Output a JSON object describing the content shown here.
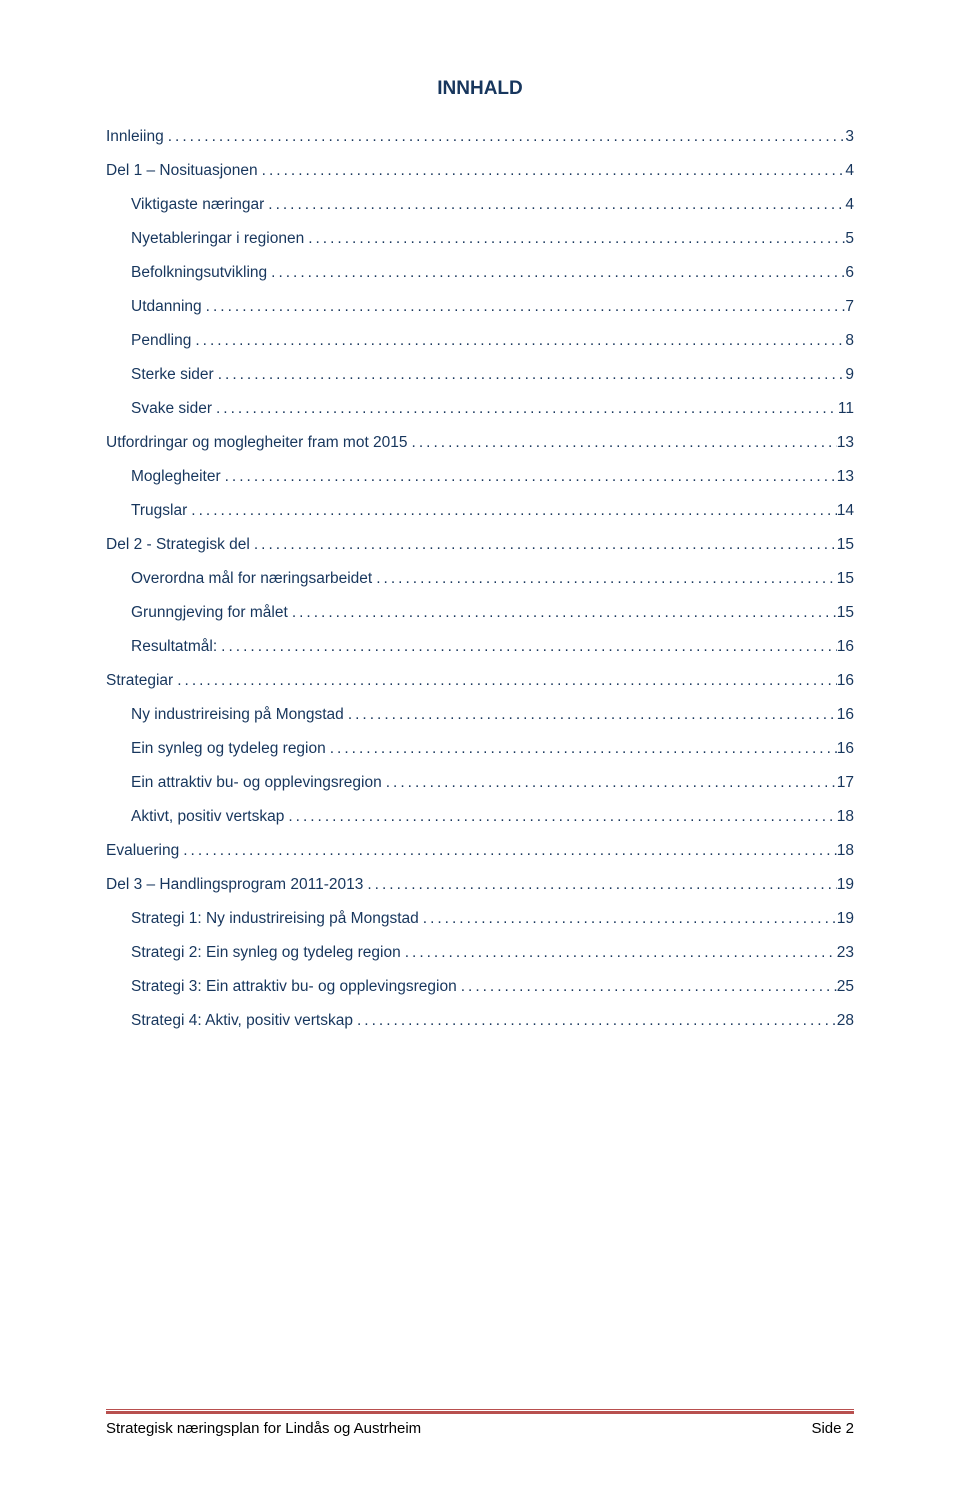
{
  "title": "INNHALD",
  "colors": {
    "heading": "#17365d",
    "toc_text": "#17365d",
    "divider": "#b8504f",
    "footer_text": "#000000",
    "background": "#ffffff"
  },
  "typography": {
    "title_fontsize": 19,
    "toc_fontsize": 15.5,
    "footer_fontsize": 15,
    "font_family": "Arial, Helvetica, sans-serif"
  },
  "toc": {
    "entries": [
      {
        "label": "Innleiing",
        "page": "3",
        "indent": 0
      },
      {
        "label": "Del 1 – Nosituasjonen",
        "page": "4",
        "indent": 0
      },
      {
        "label": "Viktigaste næringar",
        "page": "4",
        "indent": 1
      },
      {
        "label": "Nyetableringar i regionen",
        "page": "5",
        "indent": 1
      },
      {
        "label": "Befolkningsutvikling",
        "page": "6",
        "indent": 1
      },
      {
        "label": "Utdanning",
        "page": "7",
        "indent": 1
      },
      {
        "label": "Pendling",
        "page": "8",
        "indent": 1
      },
      {
        "label": "Sterke sider",
        "page": "9",
        "indent": 1
      },
      {
        "label": "Svake sider",
        "page": "11",
        "indent": 1
      },
      {
        "label": "Utfordringar og moglegheiter fram mot 2015",
        "page": "13",
        "indent": 0
      },
      {
        "label": "Moglegheiter",
        "page": "13",
        "indent": 1
      },
      {
        "label": "Trugslar",
        "page": "14",
        "indent": 1
      },
      {
        "label": "Del 2 - Strategisk del",
        "page": "15",
        "indent": 0
      },
      {
        "label": "Overordna mål for næringsarbeidet",
        "page": "15",
        "indent": 1
      },
      {
        "label": "Grunngjeving for målet",
        "page": "15",
        "indent": 1
      },
      {
        "label": "Resultatmål:",
        "page": "16",
        "indent": 1
      },
      {
        "label": "Strategiar",
        "page": "16",
        "indent": 0
      },
      {
        "label": "Ny industrireising på Mongstad",
        "page": "16",
        "indent": 1
      },
      {
        "label": "Ein synleg og tydeleg region",
        "page": "16",
        "indent": 1
      },
      {
        "label": "Ein attraktiv bu- og opplevingsregion",
        "page": "17",
        "indent": 1
      },
      {
        "label": "Aktivt, positiv vertskap",
        "page": "18",
        "indent": 1
      },
      {
        "label": "Evaluering",
        "page": "18",
        "indent": 0
      },
      {
        "label": "Del 3 – Handlingsprogram 2011-2013",
        "page": "19",
        "indent": 0
      },
      {
        "label": "Strategi 1: Ny industrireising på Mongstad",
        "page": "19",
        "indent": 1
      },
      {
        "label": "Strategi 2: Ein synleg og tydeleg region",
        "page": "23",
        "indent": 1
      },
      {
        "label": "Strategi 3: Ein attraktiv bu- og opplevingsregion",
        "page": "25",
        "indent": 1
      },
      {
        "label": "Strategi 4: Aktiv, positiv vertskap",
        "page": "28",
        "indent": 1
      }
    ]
  },
  "footer": {
    "left": "Strategisk næringsplan for Lindås og Austrheim",
    "right": "Side 2"
  }
}
